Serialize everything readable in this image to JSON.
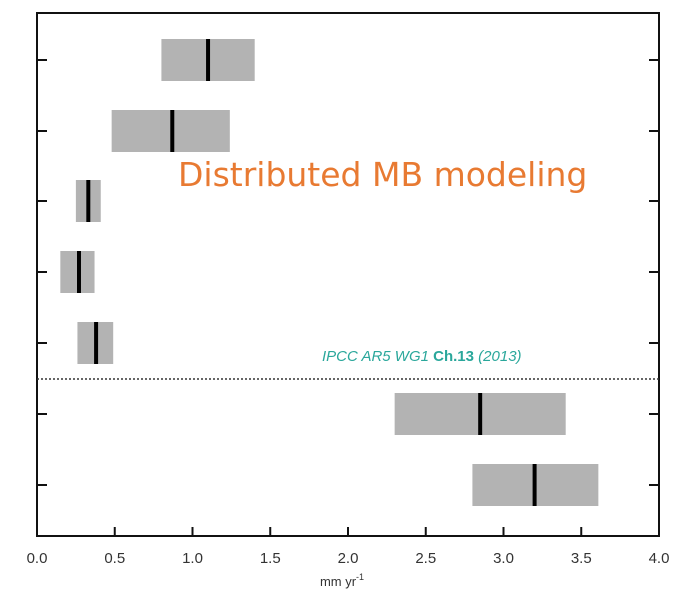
{
  "chart_data": {
    "type": "bar",
    "orientation": "horizontal",
    "xlabel": "mm yr",
    "xlabel_superscript": "-1",
    "xlim": [
      0.0,
      4.0
    ],
    "x_ticks": [
      "0.0",
      "0.5",
      "1.0",
      "1.5",
      "2.0",
      "2.5",
      "3.0",
      "3.5",
      "4.0"
    ],
    "x_tick_values": [
      0.0,
      0.5,
      1.0,
      1.5,
      2.0,
      2.5,
      3.0,
      3.5,
      4.0
    ],
    "grid": false,
    "ranges": [
      {
        "low": 0.8,
        "high": 1.4,
        "central": 1.1
      },
      {
        "low": 0.48,
        "high": 1.24,
        "central": 0.87
      },
      {
        "low": 0.25,
        "high": 0.41,
        "central": 0.33
      },
      {
        "low": 0.15,
        "high": 0.37,
        "central": 0.27
      },
      {
        "low": 0.26,
        "high": 0.49,
        "central": 0.38
      },
      {
        "low": 2.3,
        "high": 3.4,
        "central": 2.85
      },
      {
        "low": 2.8,
        "high": 3.61,
        "central": 3.2
      }
    ],
    "separator_after_row": 5,
    "annotations": [
      {
        "text": "Distributed MB modeling",
        "color": "#e87a32"
      },
      {
        "parts": [
          {
            "text": "IPCC AR5 WG1 ",
            "bold": false
          },
          {
            "text": "Ch.13",
            "bold": true
          },
          {
            "text": " (2013)",
            "bold": false
          }
        ],
        "color": "#2aa79b"
      }
    ],
    "colors": {
      "bar": "#b3b3b3",
      "central": "#000000",
      "axis": "#111111"
    }
  }
}
